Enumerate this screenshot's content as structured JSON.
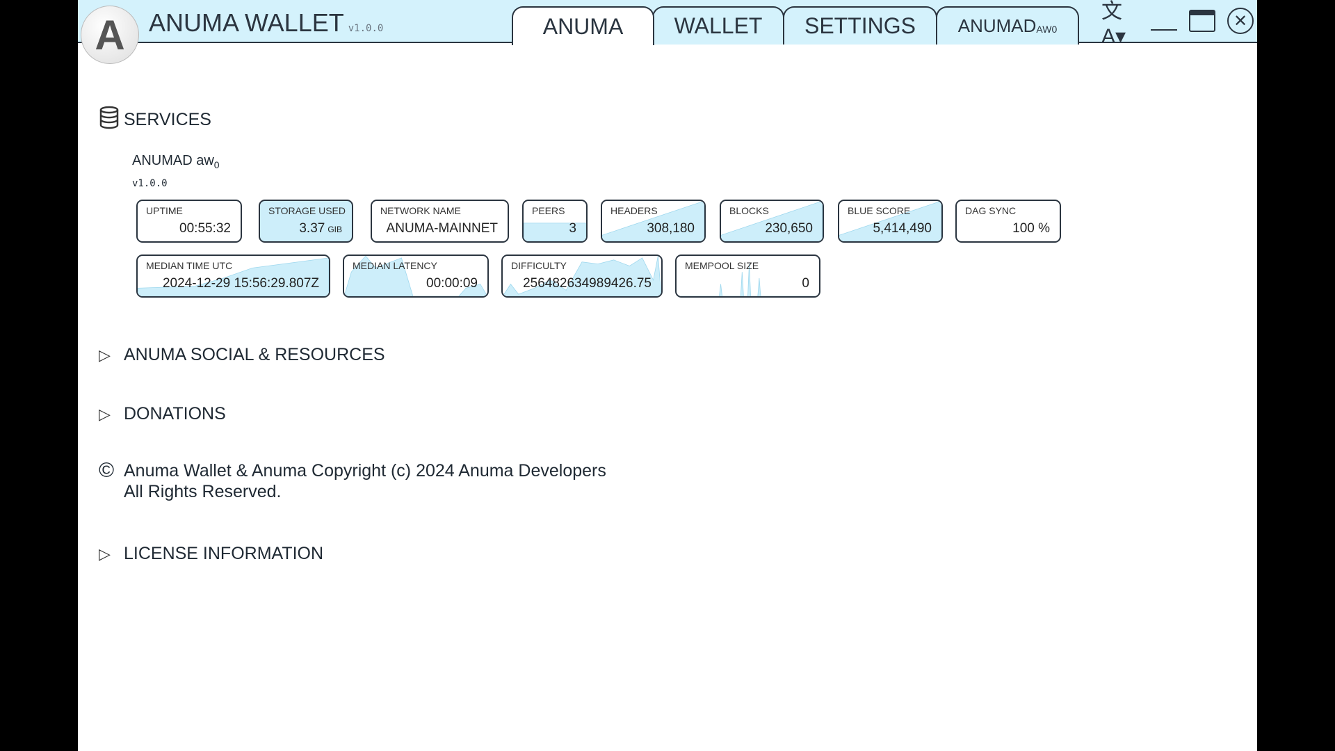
{
  "header": {
    "app_title": "ANUMA WALLET",
    "version": "v1.0.0",
    "logo_letter": "A",
    "tabs": [
      {
        "label": "ANUMA",
        "active": true
      },
      {
        "label": "WALLET"
      },
      {
        "label": "SETTINGS"
      },
      {
        "label": "ANUMAD",
        "sub": "AW0"
      }
    ],
    "controls": {
      "language_icon": "translate-icon",
      "minimize_icon": "minimize-icon",
      "maximize_icon": "maximize-icon",
      "close_icon": "close-icon"
    }
  },
  "services": {
    "title": "SERVICES",
    "icon": "database-icon",
    "name": "ANUMAD aw",
    "name_sub": "0",
    "version": "v1.0.0",
    "metrics": [
      {
        "label": "UPTIME",
        "value": "00:55:32"
      },
      {
        "label": "STORAGE USED",
        "value": "3.37",
        "unit": "GIB"
      },
      {
        "label": "NETWORK NAME",
        "value": "ANUMA-MAINNET"
      },
      {
        "label": "PEERS",
        "value": "3"
      },
      {
        "label": "HEADERS",
        "value": "308,180"
      },
      {
        "label": "BLOCKS",
        "value": "230,650"
      },
      {
        "label": "BLUE SCORE",
        "value": "5,414,490"
      },
      {
        "label": "DAG SYNC",
        "value": "100 %"
      },
      {
        "label": "MEDIAN TIME UTC",
        "value": "2024-12-29 15:56:29.807Z"
      },
      {
        "label": "MEDIAN LATENCY",
        "value": "00:00:09"
      },
      {
        "label": "DIFFICULTY",
        "value": "256482634989426.75"
      },
      {
        "label": "MEMPOOL SIZE",
        "value": "0"
      }
    ]
  },
  "sections": {
    "social": "ANUMA SOCIAL & RESOURCES",
    "donations": "DONATIONS",
    "license": "LICENSE INFORMATION"
  },
  "copyright": {
    "line1": "Anuma Wallet & Anuma Copyright (c) 2024 Anuma Developers",
    "line2": "All Rights Reserved."
  },
  "colors": {
    "header_bg": "#d4f2fc",
    "sparkline": "#cdeefa"
  }
}
